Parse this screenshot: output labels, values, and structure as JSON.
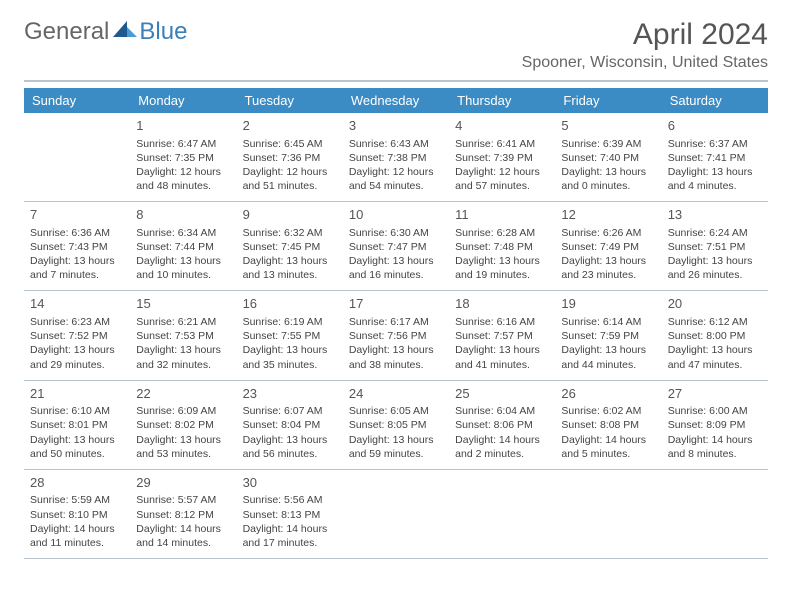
{
  "logo": {
    "part1": "General",
    "part2": "Blue"
  },
  "title": "April 2024",
  "location": "Spooner, Wisconsin, United States",
  "colors": {
    "header_bg": "#3b8bc4",
    "header_text": "#ffffff",
    "border": "#b8c5d0",
    "logo_blue": "#3b7fb8",
    "text": "#444444",
    "title_text": "#555555"
  },
  "days_of_week": [
    "Sunday",
    "Monday",
    "Tuesday",
    "Wednesday",
    "Thursday",
    "Friday",
    "Saturday"
  ],
  "layout": {
    "first_day_column": 1,
    "days_in_month": 30
  },
  "days": [
    {
      "n": 1,
      "sr": "6:47 AM",
      "ss": "7:35 PM",
      "dl": "12 hours and 48 minutes."
    },
    {
      "n": 2,
      "sr": "6:45 AM",
      "ss": "7:36 PM",
      "dl": "12 hours and 51 minutes."
    },
    {
      "n": 3,
      "sr": "6:43 AM",
      "ss": "7:38 PM",
      "dl": "12 hours and 54 minutes."
    },
    {
      "n": 4,
      "sr": "6:41 AM",
      "ss": "7:39 PM",
      "dl": "12 hours and 57 minutes."
    },
    {
      "n": 5,
      "sr": "6:39 AM",
      "ss": "7:40 PM",
      "dl": "13 hours and 0 minutes."
    },
    {
      "n": 6,
      "sr": "6:37 AM",
      "ss": "7:41 PM",
      "dl": "13 hours and 4 minutes."
    },
    {
      "n": 7,
      "sr": "6:36 AM",
      "ss": "7:43 PM",
      "dl": "13 hours and 7 minutes."
    },
    {
      "n": 8,
      "sr": "6:34 AM",
      "ss": "7:44 PM",
      "dl": "13 hours and 10 minutes."
    },
    {
      "n": 9,
      "sr": "6:32 AM",
      "ss": "7:45 PM",
      "dl": "13 hours and 13 minutes."
    },
    {
      "n": 10,
      "sr": "6:30 AM",
      "ss": "7:47 PM",
      "dl": "13 hours and 16 minutes."
    },
    {
      "n": 11,
      "sr": "6:28 AM",
      "ss": "7:48 PM",
      "dl": "13 hours and 19 minutes."
    },
    {
      "n": 12,
      "sr": "6:26 AM",
      "ss": "7:49 PM",
      "dl": "13 hours and 23 minutes."
    },
    {
      "n": 13,
      "sr": "6:24 AM",
      "ss": "7:51 PM",
      "dl": "13 hours and 26 minutes."
    },
    {
      "n": 14,
      "sr": "6:23 AM",
      "ss": "7:52 PM",
      "dl": "13 hours and 29 minutes."
    },
    {
      "n": 15,
      "sr": "6:21 AM",
      "ss": "7:53 PM",
      "dl": "13 hours and 32 minutes."
    },
    {
      "n": 16,
      "sr": "6:19 AM",
      "ss": "7:55 PM",
      "dl": "13 hours and 35 minutes."
    },
    {
      "n": 17,
      "sr": "6:17 AM",
      "ss": "7:56 PM",
      "dl": "13 hours and 38 minutes."
    },
    {
      "n": 18,
      "sr": "6:16 AM",
      "ss": "7:57 PM",
      "dl": "13 hours and 41 minutes."
    },
    {
      "n": 19,
      "sr": "6:14 AM",
      "ss": "7:59 PM",
      "dl": "13 hours and 44 minutes."
    },
    {
      "n": 20,
      "sr": "6:12 AM",
      "ss": "8:00 PM",
      "dl": "13 hours and 47 minutes."
    },
    {
      "n": 21,
      "sr": "6:10 AM",
      "ss": "8:01 PM",
      "dl": "13 hours and 50 minutes."
    },
    {
      "n": 22,
      "sr": "6:09 AM",
      "ss": "8:02 PM",
      "dl": "13 hours and 53 minutes."
    },
    {
      "n": 23,
      "sr": "6:07 AM",
      "ss": "8:04 PM",
      "dl": "13 hours and 56 minutes."
    },
    {
      "n": 24,
      "sr": "6:05 AM",
      "ss": "8:05 PM",
      "dl": "13 hours and 59 minutes."
    },
    {
      "n": 25,
      "sr": "6:04 AM",
      "ss": "8:06 PM",
      "dl": "14 hours and 2 minutes."
    },
    {
      "n": 26,
      "sr": "6:02 AM",
      "ss": "8:08 PM",
      "dl": "14 hours and 5 minutes."
    },
    {
      "n": 27,
      "sr": "6:00 AM",
      "ss": "8:09 PM",
      "dl": "14 hours and 8 minutes."
    },
    {
      "n": 28,
      "sr": "5:59 AM",
      "ss": "8:10 PM",
      "dl": "14 hours and 11 minutes."
    },
    {
      "n": 29,
      "sr": "5:57 AM",
      "ss": "8:12 PM",
      "dl": "14 hours and 14 minutes."
    },
    {
      "n": 30,
      "sr": "5:56 AM",
      "ss": "8:13 PM",
      "dl": "14 hours and 17 minutes."
    }
  ]
}
